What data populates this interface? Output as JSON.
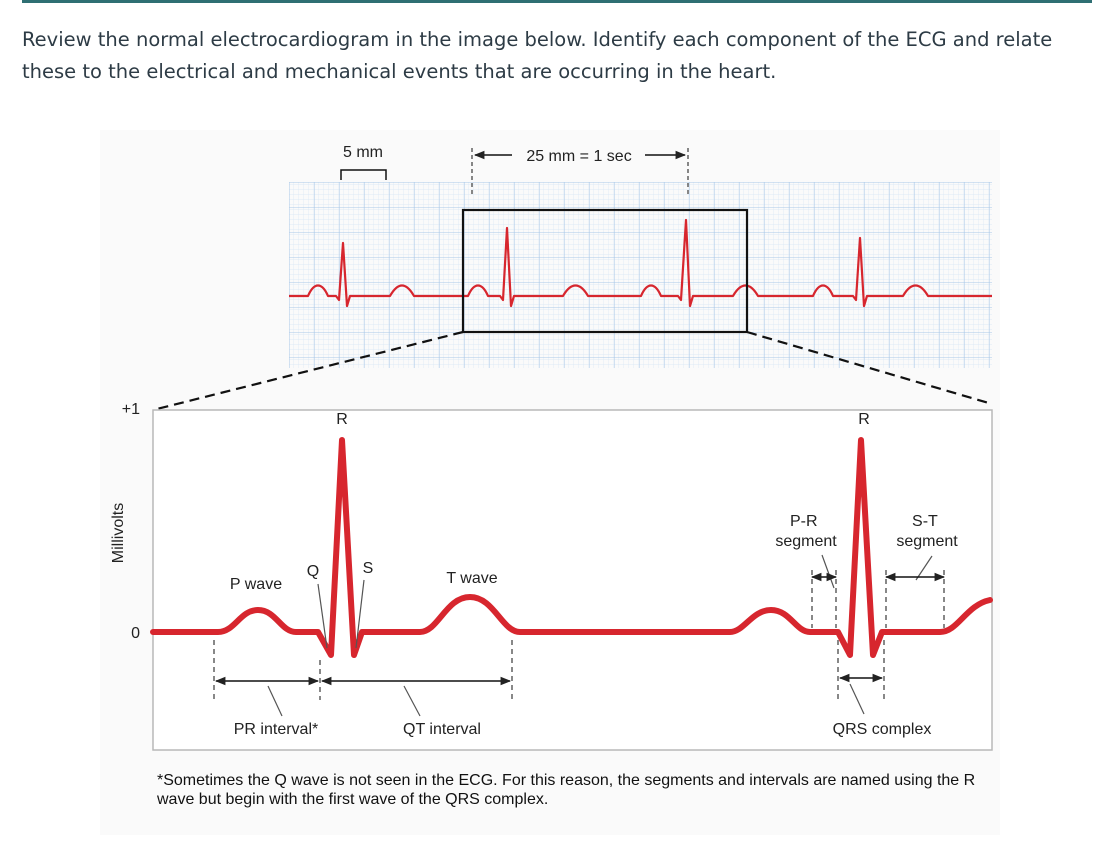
{
  "question": "Review the normal electrocardiogram in the image below. Identify each component of the ECG and relate these to the electrical and mechanical events that are occurring in the heart.",
  "figure": {
    "scale_small_box": "5 mm",
    "scale_time": "25 mm = 1 sec",
    "y_axis_label": "Millivolts",
    "y_tick_top": "+1",
    "y_tick_zero": "0",
    "labels": {
      "r_left": "R",
      "r_right": "R",
      "q": "Q",
      "s": "S",
      "p_wave": "P wave",
      "t_wave": "T wave",
      "pr_segment": "P-R\nsegment",
      "st_segment": "S-T\nsegment",
      "pr_interval": "PR interval*",
      "qt_interval": "QT interval",
      "qrs_complex": "QRS complex"
    },
    "footnote": "*Sometimes the Q wave is not seen in the ECG. For this reason, the segments and intervals are named using the R wave but begin with the first wave of the QRS complex."
  },
  "colors": {
    "trace": "#d7262e",
    "grid": "#bcd6ee",
    "frame": "#b8b8b8"
  }
}
